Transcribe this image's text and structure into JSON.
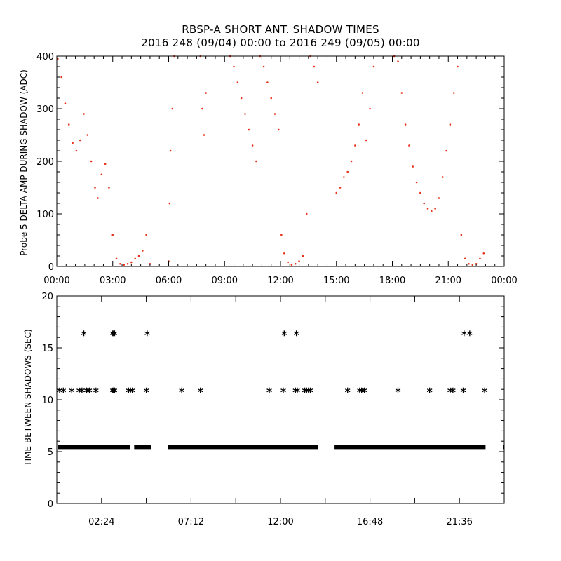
{
  "chart_data": [
    {
      "type": "scatter",
      "title": "RBSP-A SHORT ANT. SHADOW TIMES",
      "subtitle": "2016 248 (09/04) 00:00 to 2016 249 (09/05) 00:00",
      "ylabel": "Probe 5 DELTA AMP DURING SHADOW (ADC)",
      "xlabel": "",
      "xlim": [
        0,
        24
      ],
      "ylim": [
        0,
        400
      ],
      "x_ticks": [
        "00:00",
        "03:00",
        "06:00",
        "09:00",
        "12:00",
        "15:00",
        "18:00",
        "21:00",
        "00:00"
      ],
      "y_ticks": [
        "0",
        "100",
        "200",
        "300",
        "400"
      ],
      "point_color": "#e8331c",
      "series": [
        {
          "x": [
            0.05,
            0.25,
            0.45,
            0.65,
            0.85,
            1.05,
            1.25,
            1.45,
            1.65,
            1.85,
            2.05,
            2.2,
            2.4,
            2.6,
            2.8,
            3.0,
            3.2,
            3.4,
            3.6,
            3.8,
            4.0,
            4.2,
            4.4,
            4.6,
            4.8,
            5.0,
            6.0,
            6.05,
            6.1,
            6.2,
            6.3,
            7.7,
            7.8,
            7.9,
            8.0,
            9.3,
            9.5,
            9.7,
            9.9,
            10.1,
            10.3,
            10.5,
            10.7,
            10.9,
            11.1,
            11.3,
            11.5,
            11.7,
            11.9,
            12.05,
            12.2,
            12.4,
            12.6,
            12.8,
            13.0,
            13.2,
            13.4,
            13.6,
            13.8,
            14.0,
            15.0,
            15.2,
            15.4,
            15.6,
            15.8,
            16.0,
            16.2,
            16.4,
            16.6,
            16.8,
            17.0,
            18.1,
            18.3,
            18.5,
            18.7,
            18.9,
            19.1,
            19.3,
            19.5,
            19.7,
            19.9,
            20.1,
            20.3,
            20.5,
            20.7,
            20.9,
            21.1,
            21.3,
            21.5,
            21.7,
            21.9,
            22.1,
            22.3,
            22.5,
            22.7,
            22.9
          ],
          "y": [
            395,
            360,
            310,
            270,
            235,
            220,
            240,
            290,
            250,
            200,
            150,
            130,
            175,
            195,
            150,
            60,
            15,
            5,
            3,
            5,
            8,
            15,
            20,
            30,
            60,
            5,
            10,
            120,
            220,
            300,
            400,
            400,
            300,
            250,
            330,
            400,
            380,
            350,
            320,
            290,
            260,
            230,
            200,
            400,
            380,
            350,
            320,
            290,
            260,
            60,
            25,
            8,
            3,
            5,
            10,
            20,
            100,
            400,
            380,
            350,
            140,
            150,
            170,
            180,
            200,
            230,
            270,
            330,
            240,
            300,
            380,
            400,
            390,
            330,
            270,
            230,
            190,
            160,
            140,
            120,
            110,
            105,
            110,
            130,
            170,
            220,
            270,
            330,
            380,
            60,
            15,
            5,
            3,
            5,
            15,
            25
          ]
        }
      ]
    },
    {
      "type": "scatter",
      "ylabel": "TIME BETWEEN SHADOWS (SEC)",
      "xlabel": "",
      "xlim": [
        0,
        24
      ],
      "ylim": [
        0,
        20
      ],
      "x_ticks": [
        "02:24",
        "07:12",
        "12:00",
        "16:48",
        "21:36"
      ],
      "y_ticks": [
        "0",
        "5",
        "10",
        "15",
        "20"
      ],
      "marker": "asterisk",
      "baseline_segments": [
        [
          0.05,
          3.95
        ],
        [
          4.15,
          5.05
        ],
        [
          5.95,
          14.0
        ],
        [
          14.9,
          23.0
        ],
        [
          23.95,
          24.0
        ]
      ],
      "baseline_value": 5.45,
      "series": [
        {
          "x": [
            0.15,
            0.35,
            0.8,
            1.2,
            1.35,
            1.6,
            1.75,
            2.1,
            3.0,
            3.05,
            3.1,
            3.85,
            3.95,
            4.05,
            4.8,
            6.7,
            7.7,
            11.4,
            12.15,
            12.8,
            12.9,
            13.3,
            13.4,
            13.5,
            13.6,
            15.6,
            16.25,
            16.35,
            16.5,
            18.3,
            20.0,
            21.1,
            21.25,
            21.8,
            22.95,
            1.45,
            3.0,
            3.05,
            3.1,
            4.85,
            12.2,
            12.85,
            21.85,
            22.15
          ],
          "y": [
            10.9,
            10.9,
            10.9,
            10.9,
            10.9,
            10.9,
            10.9,
            10.9,
            10.9,
            10.9,
            10.9,
            10.9,
            10.9,
            10.9,
            10.9,
            10.9,
            10.9,
            10.9,
            10.9,
            10.9,
            10.9,
            10.9,
            10.9,
            10.9,
            10.9,
            10.9,
            10.9,
            10.9,
            10.9,
            10.9,
            10.9,
            10.9,
            10.9,
            10.9,
            10.9,
            16.4,
            16.4,
            16.4,
            16.4,
            16.4,
            16.4,
            16.4,
            16.4,
            16.4
          ]
        }
      ]
    }
  ]
}
